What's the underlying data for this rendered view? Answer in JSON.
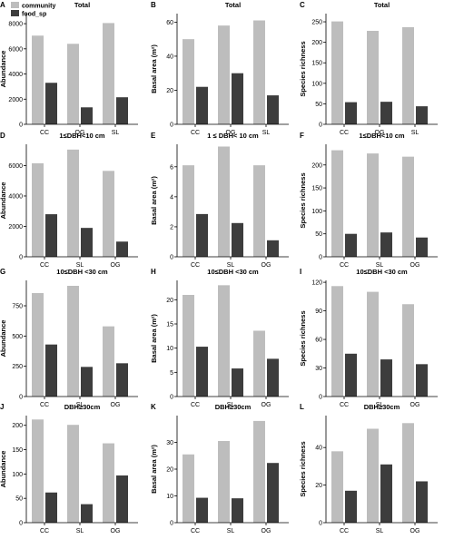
{
  "legend": {
    "items": [
      {
        "name": "community",
        "color": "#bdbdbd"
      },
      {
        "name": "food_sp",
        "color": "#3d3d3d"
      }
    ],
    "placement": "top-left"
  },
  "colors": {
    "community": "#bdbdbd",
    "food_sp": "#3d3d3d",
    "axis": "#000000"
  },
  "chart_data": [
    {
      "letter": "A",
      "type": "bar",
      "title": "Total",
      "ylabel": "Abundance",
      "categories": [
        "CC",
        "OG",
        "SL"
      ],
      "ylim": [
        0,
        8800
      ],
      "yticks": [
        0,
        2000,
        4000,
        6000,
        8000
      ],
      "series": [
        {
          "name": "community",
          "values": [
            7050,
            6400,
            8050
          ]
        },
        {
          "name": "food_sp",
          "values": [
            3300,
            1350,
            2150
          ]
        }
      ]
    },
    {
      "letter": "B",
      "type": "bar",
      "title": "Total",
      "ylabel": "Basal area (m²)",
      "categories": [
        "CC",
        "OG",
        "SL"
      ],
      "ylim": [
        0,
        65
      ],
      "yticks": [
        0,
        20,
        40,
        60
      ],
      "series": [
        {
          "name": "community",
          "values": [
            50,
            58,
            61
          ]
        },
        {
          "name": "food_sp",
          "values": [
            22,
            30,
            17
          ]
        }
      ]
    },
    {
      "letter": "C",
      "type": "bar",
      "title": "Total",
      "ylabel": "Species richness",
      "categories": [
        "CC",
        "OG",
        "SL"
      ],
      "ylim": [
        0,
        270
      ],
      "yticks": [
        0,
        50,
        100,
        150,
        200,
        250
      ],
      "series": [
        {
          "name": "community",
          "values": [
            251,
            228,
            237
          ]
        },
        {
          "name": "food_sp",
          "values": [
            54,
            55,
            44
          ]
        }
      ]
    },
    {
      "letter": "D",
      "type": "bar",
      "title": "1≤DBH<10 cm",
      "ylabel": "Abundance",
      "categories": [
        "CC",
        "SL",
        "OG"
      ],
      "ylim": [
        0,
        7400
      ],
      "yticks": [
        0,
        2000,
        4000,
        6000
      ],
      "series": [
        {
          "name": "community",
          "values": [
            6150,
            7050,
            5650
          ]
        },
        {
          "name": "food_sp",
          "values": [
            2800,
            1900,
            1000
          ]
        }
      ]
    },
    {
      "letter": "E",
      "type": "bar",
      "title": "1 ≤ DBH< 10 cm",
      "ylabel": "Basal area (m²)",
      "categories": [
        "CC",
        "SL",
        "OG"
      ],
      "ylim": [
        0,
        7.5
      ],
      "yticks": [
        0,
        2,
        4,
        6
      ],
      "series": [
        {
          "name": "community",
          "values": [
            6.1,
            7.35,
            6.1
          ]
        },
        {
          "name": "food_sp",
          "values": [
            2.85,
            2.25,
            1.1
          ]
        }
      ]
    },
    {
      "letter": "F",
      "type": "bar",
      "title": "1≤DBH<10 cm",
      "ylabel": "Species richness",
      "categories": [
        "CC",
        "SL",
        "OG"
      ],
      "ylim": [
        0,
        245
      ],
      "yticks": [
        0,
        50,
        100,
        150,
        200
      ],
      "series": [
        {
          "name": "community",
          "values": [
            232,
            225,
            218
          ]
        },
        {
          "name": "food_sp",
          "values": [
            50,
            53,
            42
          ]
        }
      ]
    },
    {
      "letter": "G",
      "type": "bar",
      "title": "10≤DBH <30 cm",
      "ylabel": "Abundance",
      "categories": [
        "CC",
        "SL",
        "OG"
      ],
      "ylim": [
        0,
        960
      ],
      "yticks": [
        0,
        250,
        500,
        750
      ],
      "series": [
        {
          "name": "community",
          "values": [
            855,
            915,
            580
          ]
        },
        {
          "name": "food_sp",
          "values": [
            430,
            245,
            275
          ]
        }
      ]
    },
    {
      "letter": "H",
      "type": "bar",
      "title": "10≤DBH <30 cm",
      "ylabel": "Basal area (m²)",
      "categories": [
        "CC",
        "SL",
        "OG"
      ],
      "ylim": [
        0,
        24
      ],
      "yticks": [
        0,
        5,
        10,
        15,
        20
      ],
      "series": [
        {
          "name": "community",
          "values": [
            21,
            23,
            13.6
          ]
        },
        {
          "name": "food_sp",
          "values": [
            10.3,
            5.8,
            7.8
          ]
        }
      ]
    },
    {
      "letter": "I",
      "type": "bar",
      "title": "10≤DBH <30 cm",
      "ylabel": "Species richness",
      "categories": [
        "CC",
        "SL",
        "OG"
      ],
      "ylim": [
        0,
        122
      ],
      "yticks": [
        0,
        30,
        60,
        90,
        120
      ],
      "series": [
        {
          "name": "community",
          "values": [
            116,
            110,
            97
          ]
        },
        {
          "name": "food_sp",
          "values": [
            45,
            39,
            34
          ]
        }
      ]
    },
    {
      "letter": "J",
      "type": "bar",
      "title": "DBH≥30cm",
      "ylabel": "Abundance",
      "categories": [
        "CC",
        "SL",
        "OG"
      ],
      "ylim": [
        0,
        220
      ],
      "yticks": [
        0,
        50,
        100,
        150,
        200
      ],
      "series": [
        {
          "name": "community",
          "values": [
            212,
            201,
            163
          ]
        },
        {
          "name": "food_sp",
          "values": [
            62,
            38,
            97
          ]
        }
      ]
    },
    {
      "letter": "K",
      "type": "bar",
      "title": "DBH≥30cm",
      "ylabel": "Basal area (m²)",
      "categories": [
        "CC",
        "SL",
        "OG"
      ],
      "ylim": [
        0,
        40
      ],
      "yticks": [
        0,
        10,
        20,
        30
      ],
      "series": [
        {
          "name": "community",
          "values": [
            25.5,
            30.5,
            38
          ]
        },
        {
          "name": "food_sp",
          "values": [
            9.3,
            9.1,
            22.3
          ]
        }
      ]
    },
    {
      "letter": "L",
      "type": "bar",
      "title": "DBH≥30cm",
      "ylabel": "Species richness",
      "categories": [
        "CC",
        "SL",
        "OG"
      ],
      "ylim": [
        0,
        57
      ],
      "yticks": [
        0,
        20,
        40
      ],
      "series": [
        {
          "name": "community",
          "values": [
            38,
            50,
            53
          ]
        },
        {
          "name": "food_sp",
          "values": [
            17,
            31,
            22
          ]
        }
      ]
    }
  ]
}
